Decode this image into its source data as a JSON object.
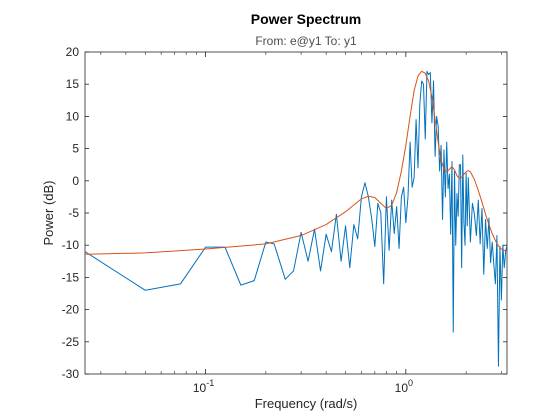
{
  "chart_data": {
    "type": "line",
    "title": "Power Spectrum",
    "subtitle": "From: e@y1  To: y1",
    "xlabel": "Frequency  (rad/s)",
    "ylabel": "Power (dB)",
    "xscale": "log",
    "xlim": [
      0.025,
      3.2
    ],
    "ylim": [
      -30,
      20
    ],
    "xticks": [
      {
        "base": "10",
        "exp": "-1",
        "value": 0.1
      },
      {
        "base": "10",
        "exp": "0",
        "value": 1
      }
    ],
    "yticks": [
      20,
      15,
      10,
      5,
      0,
      -5,
      -10,
      -15,
      -20,
      -25,
      -30
    ],
    "grid": false,
    "series": [
      {
        "color": "#0072BD",
        "x": [
          0.025,
          0.05,
          0.075,
          0.1,
          0.125,
          0.15,
          0.175,
          0.2,
          0.22,
          0.25,
          0.275,
          0.3,
          0.325,
          0.35,
          0.375,
          0.4,
          0.425,
          0.45,
          0.475,
          0.5,
          0.525,
          0.55,
          0.575,
          0.6,
          0.625,
          0.65,
          0.675,
          0.7,
          0.725,
          0.75,
          0.775,
          0.8,
          0.825,
          0.85,
          0.875,
          0.9,
          0.925,
          0.95,
          0.975,
          1.0,
          1.025,
          1.05,
          1.075,
          1.1,
          1.125,
          1.15,
          1.175,
          1.2,
          1.225,
          1.25,
          1.275,
          1.3,
          1.325,
          1.35,
          1.375,
          1.4,
          1.425,
          1.45,
          1.475,
          1.5,
          1.525,
          1.55,
          1.575,
          1.6,
          1.625,
          1.65,
          1.675,
          1.7,
          1.725,
          1.75,
          1.775,
          1.8,
          1.825,
          1.85,
          1.875,
          1.9,
          1.925,
          1.95,
          1.975,
          2.0,
          2.025,
          2.05,
          2.1,
          2.15,
          2.2,
          2.25,
          2.3,
          2.35,
          2.4,
          2.45,
          2.5,
          2.55,
          2.6,
          2.65,
          2.7,
          2.75,
          2.8,
          2.85,
          2.9,
          2.95,
          3.0,
          3.05,
          3.1,
          3.15,
          3.2
        ],
        "y": [
          -11,
          -17,
          -16,
          -10.3,
          -10.3,
          -16.2,
          -15.5,
          -9.5,
          -9.8,
          -15.3,
          -14,
          -8,
          -12.5,
          -7.5,
          -14,
          -8.3,
          -11,
          -5.2,
          -12.5,
          -7,
          -13.5,
          -6.8,
          -9,
          -2.5,
          -0.3,
          -2.5,
          -5.8,
          -10.2,
          -3.5,
          -5,
          -16,
          -2.5,
          -10.8,
          -3,
          -8.2,
          -4,
          -10.5,
          -2.5,
          -1,
          -6.5,
          -2.5,
          6,
          -1,
          0.5,
          9.5,
          2,
          12,
          15.5,
          15,
          6.5,
          17,
          16.5,
          16.8,
          9,
          15.5,
          3.8,
          10,
          8.5,
          1.5,
          5.5,
          -6,
          4.8,
          -2.5,
          6,
          -1.2,
          1,
          -8.3,
          3,
          -23.5,
          1.5,
          -10,
          -2,
          -5.5,
          2.5,
          2.5,
          -13.5,
          4,
          -6.5,
          -10,
          1.2,
          -7,
          0.5,
          -9.5,
          -3.5,
          -5.2,
          -8.5,
          -3,
          -9.8,
          -4.3,
          -14.5,
          -6,
          -10.5,
          -5.8,
          -12.7,
          -9.5,
          -13,
          -16,
          -8.5,
          -28.8,
          -10.2,
          -18.5,
          -10,
          -13.5,
          -11,
          -10
        ]
      },
      {
        "color": "#D95319",
        "x": [
          0.025,
          0.05,
          0.1,
          0.2,
          0.3,
          0.4,
          0.5,
          0.6,
          0.65,
          0.7,
          0.75,
          0.8,
          0.85,
          0.9,
          0.95,
          1.0,
          1.05,
          1.1,
          1.15,
          1.2,
          1.25,
          1.3,
          1.35,
          1.4,
          1.45,
          1.5,
          1.55,
          1.6,
          1.65,
          1.7,
          1.75,
          1.8,
          1.85,
          1.9,
          1.95,
          2.0,
          2.05,
          2.1,
          2.2,
          2.3,
          2.4,
          2.5,
          2.6,
          2.7,
          2.8,
          2.9,
          3.0,
          3.1,
          3.2
        ],
        "y": [
          -11.4,
          -11.2,
          -10.6,
          -9.8,
          -8.5,
          -6.8,
          -4.8,
          -2.8,
          -2.4,
          -2.6,
          -3.5,
          -4.3,
          -3.8,
          -1.8,
          1.5,
          5.5,
          10,
          14,
          16.3,
          17,
          16.7,
          15.5,
          13,
          9.5,
          6,
          3.2,
          1.8,
          1.4,
          1.8,
          2.2,
          1.7,
          0.8,
          0.4,
          0.5,
          1.0,
          1.4,
          1.6,
          1.4,
          0.2,
          -1.5,
          -3.3,
          -5.2,
          -6.8,
          -8.2,
          -9.3,
          -10.1,
          -10.6,
          -10.8,
          -10.9
        ]
      }
    ]
  }
}
